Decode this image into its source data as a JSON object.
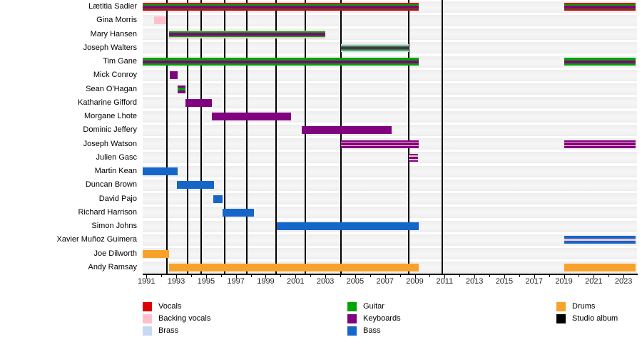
{
  "chart_data": {
    "type": "timeline",
    "x_axis": {
      "min_year": 1990.75,
      "max_year": 2023.9,
      "labeled_ticks": [
        1991,
        1993,
        1995,
        1997,
        1999,
        2001,
        2003,
        2005,
        2007,
        2009,
        2011,
        2013,
        2015,
        2017,
        2019,
        2021,
        2023
      ],
      "minor_tick_step": 1
    },
    "colors": {
      "vocals": "#dd0000",
      "backing_vocals": "#ffc0cb",
      "brass": "#c6d9f1",
      "guitar": "#00a400",
      "keyboards": "#800080",
      "bass": "#1466c8",
      "drums": "#f9a22b",
      "studio_album": "#000000"
    },
    "legend": {
      "columns": [
        [
          {
            "key": "vocals",
            "label": "Vocals"
          },
          {
            "key": "backing_vocals",
            "label": "Backing vocals"
          },
          {
            "key": "brass",
            "label": "Brass"
          }
        ],
        [
          {
            "key": "guitar",
            "label": "Guitar"
          },
          {
            "key": "keyboards",
            "label": "Keyboards"
          },
          {
            "key": "bass",
            "label": "Bass"
          }
        ],
        [
          {
            "key": "drums",
            "label": "Drums"
          },
          {
            "key": "studio_album",
            "label": "Studio album"
          }
        ]
      ]
    },
    "members": [
      {
        "name": "Lætitia Sadier",
        "periods": [
          {
            "start": 1990.75,
            "end": 2009.25
          },
          {
            "start": 2019,
            "end": 2023.8
          }
        ],
        "stripes": [
          [
            "vocals",
            2
          ],
          [
            "guitar",
            1.5
          ],
          [
            "keyboards",
            4
          ],
          [
            "guitar",
            1.5
          ],
          [
            "vocals",
            2
          ]
        ]
      },
      {
        "name": "Gina Morris",
        "periods": [
          {
            "start": 1991.5,
            "end": 1992.35
          }
        ],
        "stripes": [
          [
            "backing_vocals",
            1
          ]
        ]
      },
      {
        "name": "Mary Hansen",
        "periods": [
          {
            "start": 1992.5,
            "end": 2003.0
          }
        ],
        "stripes": [
          [
            "backing_vocals",
            1.5
          ],
          [
            "guitar",
            2
          ],
          [
            "keyboards",
            3
          ],
          [
            "guitar",
            2
          ],
          [
            "backing_vocals",
            1.5
          ]
        ]
      },
      {
        "name": "Joseph Walters",
        "periods": [
          {
            "start": 2004.05,
            "end": 2008.6
          }
        ],
        "stripes": [
          [
            "brass",
            2
          ],
          [
            "guitar",
            2
          ],
          [
            "keyboards",
            3
          ],
          [
            "guitar",
            2
          ],
          [
            "brass",
            2
          ]
        ]
      },
      {
        "name": "Tim Gane",
        "periods": [
          {
            "start": 1990.75,
            "end": 2009.25
          },
          {
            "start": 2019,
            "end": 2023.8
          }
        ],
        "stripes": [
          [
            "guitar",
            3
          ],
          [
            "keyboards",
            3.5
          ],
          [
            "guitar",
            3
          ]
        ]
      },
      {
        "name": "Mick Conroy",
        "periods": [
          {
            "start": 1992.55,
            "end": 1993.1
          }
        ],
        "stripes": [
          [
            "keyboards",
            1
          ]
        ]
      },
      {
        "name": "Sean O'Hagan",
        "periods": [
          {
            "start": 1993.1,
            "end": 1993.6
          }
        ],
        "stripes": [
          [
            "keyboards",
            3
          ],
          [
            "guitar",
            3
          ],
          [
            "keyboards",
            3
          ]
        ]
      },
      {
        "name": "Katharine Gifford",
        "periods": [
          {
            "start": 1993.6,
            "end": 1995.4
          }
        ],
        "stripes": [
          [
            "keyboards",
            1
          ]
        ]
      },
      {
        "name": "Morgane Lhote",
        "periods": [
          {
            "start": 1995.4,
            "end": 2000.7
          }
        ],
        "stripes": [
          [
            "keyboards",
            1
          ]
        ]
      },
      {
        "name": "Dominic Jeffery",
        "periods": [
          {
            "start": 2001.4,
            "end": 2007.45
          }
        ],
        "stripes": [
          [
            "keyboards",
            1
          ]
        ]
      },
      {
        "name": "Joseph Watson",
        "periods": [
          {
            "start": 2004.05,
            "end": 2009.25
          },
          {
            "start": 2019,
            "end": 2023.8
          }
        ],
        "stripes": [
          [
            "keyboards",
            2
          ],
          [
            "backing_vocals",
            1.5
          ],
          [
            "keyboards",
            3
          ],
          [
            "backing_vocals",
            1.5
          ],
          [
            "keyboards",
            2
          ]
        ]
      },
      {
        "name": "Julien Gasc",
        "periods": [
          {
            "start": 2008.6,
            "end": 2009.2
          }
        ],
        "stripes": [
          [
            "keyboards",
            2
          ],
          [
            "backing_vocals",
            1.5
          ],
          [
            "keyboards",
            3
          ],
          [
            "backing_vocals",
            1.5
          ],
          [
            "keyboards",
            2
          ]
        ]
      },
      {
        "name": "Martin Kean",
        "periods": [
          {
            "start": 1990.75,
            "end": 1993.1
          }
        ],
        "stripes": [
          [
            "bass",
            1
          ]
        ]
      },
      {
        "name": "Duncan Brown",
        "periods": [
          {
            "start": 1993.05,
            "end": 1995.55
          }
        ],
        "stripes": [
          [
            "bass",
            1
          ]
        ]
      },
      {
        "name": "David Pajo",
        "periods": [
          {
            "start": 1995.5,
            "end": 1996.1
          }
        ],
        "stripes": [
          [
            "bass",
            1
          ]
        ]
      },
      {
        "name": "Richard Harrison",
        "periods": [
          {
            "start": 1996.1,
            "end": 1998.2
          }
        ],
        "stripes": [
          [
            "bass",
            1
          ]
        ]
      },
      {
        "name": "Simon Johns",
        "periods": [
          {
            "start": 1999.75,
            "end": 2009.25
          }
        ],
        "stripes": [
          [
            "bass",
            1
          ]
        ]
      },
      {
        "name": "Xavier Muñoz Guimera",
        "periods": [
          {
            "start": 2019,
            "end": 2023.8
          }
        ],
        "stripes": [
          [
            "bass",
            3.5
          ],
          [
            "backing_vocals",
            3
          ],
          [
            "bass",
            3.5
          ]
        ]
      },
      {
        "name": "Joe Dilworth",
        "periods": [
          {
            "start": 1990.75,
            "end": 1992.5
          }
        ],
        "stripes": [
          [
            "drums",
            1
          ]
        ]
      },
      {
        "name": "Andy Ramsay",
        "periods": [
          {
            "start": 1992.5,
            "end": 2009.25
          },
          {
            "start": 2019,
            "end": 2023.8
          }
        ],
        "stripes": [
          [
            "drums",
            1
          ]
        ]
      }
    ],
    "studio_albums_years": [
      1992.4,
      1993.75,
      1994.65,
      1996.25,
      1997.75,
      1999.7,
      2001.65,
      2004.05,
      2008.6,
      2010.85
    ]
  }
}
